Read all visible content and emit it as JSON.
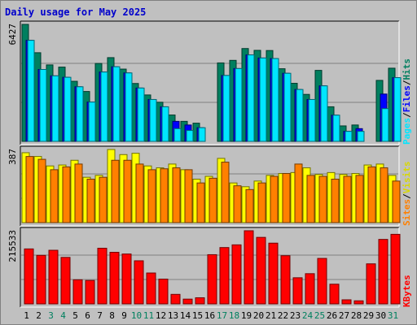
{
  "chart_data": {
    "type": "bar",
    "title": "Daily usage for May 2025",
    "categories": [
      "1",
      "2",
      "3",
      "4",
      "5",
      "6",
      "7",
      "8",
      "9",
      "10",
      "11",
      "12",
      "13",
      "14",
      "15",
      "16",
      "17",
      "18",
      "19",
      "20",
      "21",
      "22",
      "23",
      "24",
      "25",
      "26",
      "27",
      "28",
      "29",
      "30",
      "31"
    ],
    "weekend_days": [
      "3",
      "4",
      "10",
      "11",
      "17",
      "18",
      "24",
      "25",
      "31"
    ],
    "panels": [
      {
        "id": "hits",
        "ymax_label": "6427",
        "ymax": 6427,
        "legend": [
          "Pages",
          "Files",
          "Hits"
        ],
        "series": [
          {
            "name": "Hits",
            "color": "#007f5f",
            "values": [
              6427,
              4870,
              4200,
              4080,
              3300,
              2740,
              4280,
              4600,
              3970,
              3180,
              2550,
              2150,
              1450,
              1100,
              1000,
              0,
              4310,
              4450,
              5100,
              5000,
              4990,
              3990,
              3190,
              2580,
              3900,
              1900,
              850,
              900,
              0,
              3350,
              4020
            ]
          },
          {
            "name": "Files",
            "color": "#0000ff",
            "values": [
              5550,
              3950,
              3600,
              3520,
              3000,
              2160,
              3810,
              4100,
              3760,
              2930,
              2300,
              1900,
              1100,
              900,
              750,
              0,
              3620,
              4000,
              4750,
              4580,
              4550,
              3740,
              2850,
              2300,
              3050,
              1440,
              550,
              700,
              0,
              2600,
              3500
            ]
          },
          {
            "name": "Pages",
            "color": "#00e6ff",
            "values": [
              5550,
              3950,
              3600,
              3520,
              3000,
              2160,
              3810,
              4100,
              3760,
              2930,
              2300,
              1900,
              700,
              600,
              750,
              0,
              3620,
              4000,
              4750,
              4580,
              4550,
              3740,
              2850,
              2300,
              3050,
              1440,
              550,
              550,
              0,
              1800,
              3500
            ]
          }
        ]
      },
      {
        "id": "visits",
        "ymax_label": "387",
        "ymax": 387,
        "legend": [
          "Sites",
          "Visits"
        ],
        "series": [
          {
            "name": "Visits",
            "color": "#ffff00",
            "values": [
              370,
              350,
              300,
              305,
              330,
              240,
              250,
              387,
              360,
              367,
              300,
              290,
              310,
              280,
              230,
              245,
              340,
              210,
              190,
              220,
              250,
              260,
              265,
              290,
              255,
              265,
              255,
              260,
              305,
              310,
              250
            ]
          },
          {
            "name": "Sites",
            "color": "#ff8000",
            "values": [
              350,
              335,
              280,
              295,
              310,
              230,
              240,
              330,
              330,
              310,
              280,
              285,
              290,
              280,
              210,
              235,
              320,
              195,
              175,
              210,
              245,
              260,
              310,
              250,
              245,
              230,
              245,
              250,
              295,
              290,
              220
            ]
          }
        ]
      },
      {
        "id": "kbytes",
        "ymax_label": "215533",
        "ymax": 215533,
        "legend": [
          "KBytes"
        ],
        "series": [
          {
            "name": "KBytes",
            "color": "#ff0000",
            "values": [
              162000,
              143000,
              158000,
              137000,
              71000,
              69000,
              164000,
              152000,
              147000,
              127000,
              91000,
              73000,
              28000,
              14000,
              18000,
              145000,
              166000,
              174000,
              215533,
              196000,
              179000,
              142000,
              77000,
              89000,
              134000,
              58000,
              12000,
              9000,
              118000,
              190000,
              205000
            ]
          }
        ]
      }
    ],
    "grid": true
  }
}
